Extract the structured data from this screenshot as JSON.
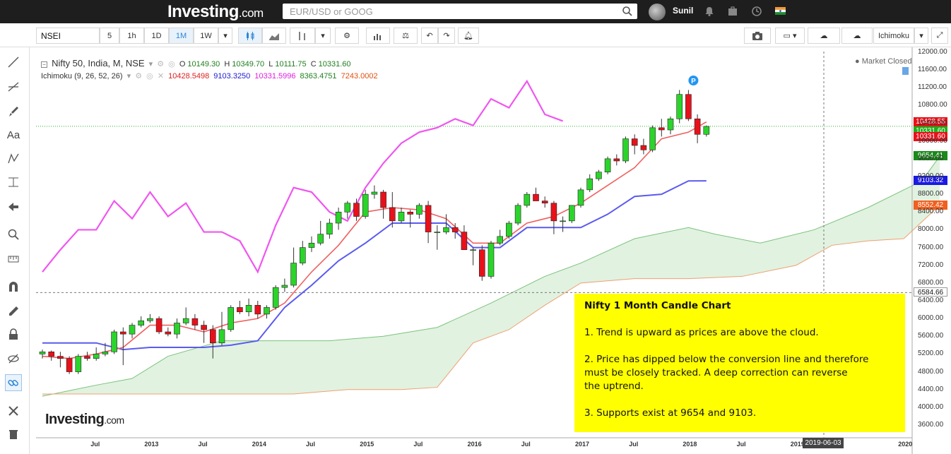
{
  "topbar": {
    "logo": "Investing",
    "logo_suffix": ".com",
    "search_placeholder": "EUR/USD or GOOG",
    "username": "Sunil"
  },
  "toolbar": {
    "symbol": "NSEI",
    "intervals": [
      "5",
      "1h",
      "1D",
      "1M",
      "1W"
    ],
    "active_interval": "1M",
    "indicator_selected": "Ichimoku"
  },
  "legend": {
    "title": "Nifty 50, India, M, NSE",
    "o_label": "O",
    "o": "10149.30",
    "h_label": "H",
    "h": "10349.70",
    "l_label": "L",
    "l": "10111.75",
    "c_label": "C",
    "c": "10331.60",
    "indicator": "Ichimoku (9, 26, 52, 26)",
    "values": [
      {
        "v": "10428.5498",
        "color": "#e02020"
      },
      {
        "v": "9103.3250",
        "color": "#2020d0"
      },
      {
        "v": "10331.5996",
        "color": "#e020e0"
      },
      {
        "v": "8363.4751",
        "color": "#208020"
      },
      {
        "v": "7243.0002",
        "color": "#e05010"
      }
    ]
  },
  "market_status": "Market Closed",
  "note": {
    "title": "Nifty 1 Month Candle Chart",
    "p1": "1. Trend is upward as prices are above the cloud.",
    "p2a": "2. Price has dipped below the conversion line and therefore",
    "p2b": "must be closely tracked. A deep correction can reverse",
    "p2c": "the uptrend.",
    "p3": "3. Supports exist at 9654 and 9103."
  },
  "watermark": "Investing",
  "watermark_suffix": ".com",
  "price_tags": [
    {
      "label": "10428.55",
      "value": 10428.55,
      "color": "#e8111a"
    },
    {
      "label": "10331.60",
      "value": 10331.6,
      "color": "#1ab21a"
    },
    {
      "label": "10331.60",
      "value": 10331.6,
      "color": "#e8111a"
    },
    {
      "label": "9654.41",
      "value": 9654.41,
      "color": "#1a8a1a"
    },
    {
      "label": "9103.32",
      "value": 9103.32,
      "color": "#1a1ae0"
    },
    {
      "label": "8552.42",
      "value": 8552.42,
      "color": "#f06020"
    },
    {
      "label": "6584.66",
      "value": 6584.66,
      "color": "dark"
    }
  ],
  "y_axis_labels": [
    "12000.00",
    "11600.00",
    "11200.00",
    "10800.00",
    "10400.00",
    "10000.00",
    "9600.00",
    "9200.00",
    "8800.00",
    "8400.00",
    "8000.00",
    "7600.00",
    "7200.00",
    "6800.00",
    "6400.00",
    "6000.00",
    "5600.00",
    "5200.00",
    "4800.00",
    "4400.00",
    "4000.00",
    "3600.00"
  ],
  "x_axis_labels": [
    {
      "t": "Jul",
      "i": 6
    },
    {
      "t": "2013",
      "i": 12
    },
    {
      "t": "Jul",
      "i": 18
    },
    {
      "t": "2014",
      "i": 24
    },
    {
      "t": "Jul",
      "i": 30
    },
    {
      "t": "2015",
      "i": 36
    },
    {
      "t": "Jul",
      "i": 42
    },
    {
      "t": "2016",
      "i": 48
    },
    {
      "t": "Jul",
      "i": 54
    },
    {
      "t": "2017",
      "i": 60
    },
    {
      "t": "Jul",
      "i": 66
    },
    {
      "t": "2018",
      "i": 72
    },
    {
      "t": "Jul",
      "i": 78
    },
    {
      "t": "2019",
      "i": 84
    },
    {
      "t": "2020",
      "i": 96
    }
  ],
  "date_tag": "2019-06-03",
  "chart_data": {
    "type": "candlestick",
    "y_range": [
      3400,
      12100
    ],
    "months_start": "2012-01",
    "candles": [
      [
        5200,
        5300,
        5100,
        5250
      ],
      [
        5250,
        5280,
        5050,
        5150
      ],
      [
        5150,
        5250,
        4900,
        5100
      ],
      [
        5100,
        5150,
        4750,
        4800
      ],
      [
        4800,
        5200,
        4750,
        5150
      ],
      [
        5150,
        5250,
        5050,
        5100
      ],
      [
        5100,
        5350,
        5050,
        5200
      ],
      [
        5200,
        5450,
        5150,
        5250
      ],
      [
        5250,
        5750,
        5200,
        5700
      ],
      [
        5700,
        5800,
        4950,
        5650
      ],
      [
        5650,
        5900,
        5550,
        5850
      ],
      [
        5850,
        6050,
        5800,
        5950
      ],
      [
        5950,
        6100,
        5900,
        6000
      ],
      [
        6000,
        6050,
        5650,
        5700
      ],
      [
        5700,
        5800,
        5600,
        5650
      ],
      [
        5650,
        6000,
        5550,
        5900
      ],
      [
        5900,
        6250,
        5850,
        6000
      ],
      [
        6000,
        6100,
        5750,
        5850
      ],
      [
        5850,
        5950,
        5450,
        5750
      ],
      [
        5750,
        5850,
        5100,
        5450
      ],
      [
        5450,
        6150,
        5400,
        5750
      ],
      [
        5750,
        6300,
        5700,
        6250
      ],
      [
        6250,
        6400,
        6100,
        6150
      ],
      [
        6150,
        6450,
        6050,
        6300
      ],
      [
        6300,
        6400,
        6000,
        6100
      ],
      [
        6100,
        6300,
        6000,
        6250
      ],
      [
        6250,
        6750,
        6200,
        6700
      ],
      [
        6700,
        6900,
        6600,
        6750
      ],
      [
        6750,
        7600,
        6700,
        7250
      ],
      [
        7250,
        7750,
        7200,
        7600
      ],
      [
        7600,
        7850,
        7500,
        7700
      ],
      [
        7700,
        8200,
        7650,
        7900
      ],
      [
        7900,
        8250,
        7800,
        8150
      ],
      [
        8150,
        8500,
        8000,
        8400
      ],
      [
        8400,
        8650,
        8250,
        8600
      ],
      [
        8600,
        8700,
        8200,
        8300
      ],
      [
        8300,
        8900,
        8250,
        8800
      ],
      [
        8800,
        9000,
        8700,
        8850
      ],
      [
        8850,
        8900,
        8250,
        8500
      ],
      [
        8500,
        8850,
        8050,
        8200
      ],
      [
        8200,
        8500,
        8150,
        8400
      ],
      [
        8400,
        8450,
        8050,
        8350
      ],
      [
        8350,
        8600,
        8250,
        8550
      ],
      [
        8550,
        8650,
        7700,
        7950
      ],
      [
        7950,
        8100,
        7550,
        7950
      ],
      [
        7950,
        8350,
        7900,
        8050
      ],
      [
        8050,
        8150,
        7800,
        7950
      ],
      [
        7950,
        8100,
        7550,
        7550
      ],
      [
        7550,
        7600,
        7200,
        7550
      ],
      [
        7550,
        7650,
        6850,
        6950
      ],
      [
        6950,
        7750,
        6900,
        7700
      ],
      [
        7700,
        8000,
        7650,
        7850
      ],
      [
        7850,
        8200,
        7800,
        8150
      ],
      [
        8150,
        8600,
        8100,
        8550
      ],
      [
        8550,
        8850,
        8500,
        8800
      ],
      [
        8800,
        8950,
        8650,
        8650
      ],
      [
        8650,
        8750,
        8500,
        8600
      ],
      [
        8600,
        8650,
        7900,
        8200
      ],
      [
        8200,
        8300,
        7950,
        8200
      ],
      [
        8200,
        8550,
        8150,
        8550
      ],
      [
        8550,
        8950,
        8500,
        8900
      ],
      [
        8900,
        9250,
        8850,
        9150
      ],
      [
        9150,
        9350,
        9100,
        9300
      ],
      [
        9300,
        9650,
        9250,
        9600
      ],
      [
        9600,
        9700,
        9450,
        9550
      ],
      [
        9550,
        10100,
        9500,
        10050
      ],
      [
        10050,
        10150,
        9700,
        9900
      ],
      [
        9900,
        10050,
        9700,
        9800
      ],
      [
        9800,
        10350,
        9750,
        10300
      ],
      [
        10300,
        10500,
        10100,
        10250
      ],
      [
        10250,
        10550,
        10150,
        10500
      ],
      [
        10500,
        11150,
        10400,
        11050
      ],
      [
        11050,
        11150,
        10450,
        10500
      ],
      [
        10500,
        10600,
        9950,
        10150
      ],
      [
        10150,
        10350,
        10100,
        10330
      ]
    ],
    "tenkan": [
      [
        0,
        5150
      ],
      [
        3,
        5100
      ],
      [
        6,
        5200
      ],
      [
        9,
        5350
      ],
      [
        12,
        5850
      ],
      [
        15,
        5850
      ],
      [
        18,
        5700
      ],
      [
        21,
        5900
      ],
      [
        24,
        6000
      ],
      [
        27,
        6350
      ],
      [
        30,
        7050
      ],
      [
        33,
        7650
      ],
      [
        36,
        8400
      ],
      [
        39,
        8500
      ],
      [
        42,
        8450
      ],
      [
        45,
        8250
      ],
      [
        48,
        7700
      ],
      [
        51,
        7700
      ],
      [
        54,
        8150
      ],
      [
        57,
        8300
      ],
      [
        60,
        8600
      ],
      [
        63,
        9000
      ],
      [
        66,
        9400
      ],
      [
        69,
        10050
      ],
      [
        72,
        10200
      ],
      [
        74,
        10430
      ]
    ],
    "kijun": [
      [
        0,
        5450
      ],
      [
        6,
        5450
      ],
      [
        9,
        5300
      ],
      [
        12,
        5350
      ],
      [
        15,
        5350
      ],
      [
        18,
        5350
      ],
      [
        21,
        5400
      ],
      [
        24,
        5500
      ],
      [
        27,
        6250
      ],
      [
        30,
        6750
      ],
      [
        33,
        7300
      ],
      [
        36,
        7700
      ],
      [
        39,
        8150
      ],
      [
        42,
        8150
      ],
      [
        45,
        8150
      ],
      [
        48,
        7600
      ],
      [
        51,
        7600
      ],
      [
        54,
        8050
      ],
      [
        57,
        8050
      ],
      [
        60,
        8050
      ],
      [
        63,
        8350
      ],
      [
        66,
        8750
      ],
      [
        69,
        8800
      ],
      [
        72,
        9100
      ],
      [
        74,
        9103
      ]
    ],
    "chikou": [
      [
        0,
        7050
      ],
      [
        2,
        7550
      ],
      [
        4,
        8000
      ],
      [
        6,
        8000
      ],
      [
        8,
        8650
      ],
      [
        10,
        8250
      ],
      [
        12,
        8850
      ],
      [
        14,
        8300
      ],
      [
        16,
        8600
      ],
      [
        18,
        7950
      ],
      [
        20,
        7950
      ],
      [
        22,
        7750
      ],
      [
        24,
        7050
      ],
      [
        26,
        8100
      ],
      [
        28,
        8950
      ],
      [
        30,
        8850
      ],
      [
        32,
        8400
      ],
      [
        34,
        8200
      ],
      [
        36,
        8950
      ],
      [
        38,
        9500
      ],
      [
        40,
        9950
      ],
      [
        42,
        10200
      ],
      [
        44,
        10300
      ],
      [
        46,
        10500
      ],
      [
        48,
        10350
      ],
      [
        50,
        10950
      ],
      [
        52,
        10750
      ],
      [
        54,
        11350
      ],
      [
        56,
        10600
      ],
      [
        58,
        10450
      ]
    ],
    "senkou_a": [
      [
        0,
        4250
      ],
      [
        6,
        4500
      ],
      [
        10,
        4650
      ],
      [
        14,
        5150
      ],
      [
        20,
        5500
      ],
      [
        26,
        5500
      ],
      [
        32,
        5500
      ],
      [
        38,
        5600
      ],
      [
        44,
        5800
      ],
      [
        50,
        6350
      ],
      [
        56,
        6950
      ],
      [
        60,
        7250
      ],
      [
        66,
        7800
      ],
      [
        72,
        8050
      ],
      [
        75,
        7900
      ],
      [
        80,
        7700
      ],
      [
        86,
        8000
      ],
      [
        92,
        8500
      ],
      [
        98,
        9100
      ],
      [
        100,
        9654
      ]
    ],
    "senkou_b": [
      [
        0,
        4300
      ],
      [
        18,
        4300
      ],
      [
        28,
        4300
      ],
      [
        34,
        4400
      ],
      [
        40,
        4400
      ],
      [
        44,
        4450
      ],
      [
        48,
        5450
      ],
      [
        52,
        5750
      ],
      [
        56,
        6300
      ],
      [
        60,
        6800
      ],
      [
        66,
        6900
      ],
      [
        72,
        6900
      ],
      [
        78,
        6950
      ],
      [
        84,
        7200
      ],
      [
        88,
        7650
      ],
      [
        92,
        7750
      ],
      [
        96,
        7800
      ],
      [
        100,
        8552
      ]
    ]
  }
}
